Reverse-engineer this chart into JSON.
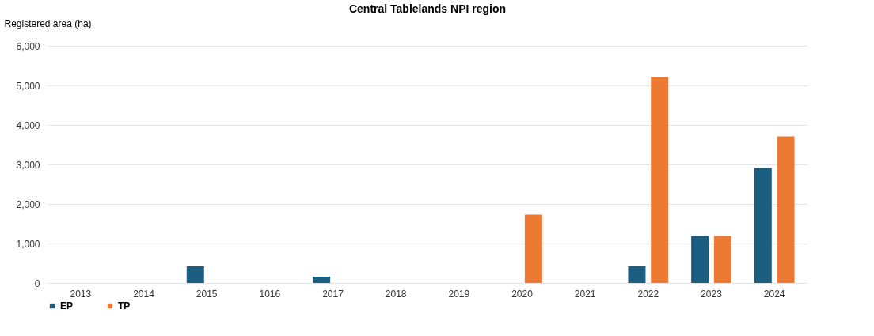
{
  "chart_data": {
    "type": "bar",
    "title": "Central Tablelands NPI region",
    "ylabel": "Registered area (ha)",
    "categories": [
      "2013",
      "2014",
      "2015",
      "1016",
      "2017",
      "2018",
      "2019",
      "2020",
      "2021",
      "2022",
      "2023",
      "2024"
    ],
    "series": [
      {
        "name": "EP",
        "color": "#1b5e82",
        "values": [
          null,
          null,
          420,
          null,
          160,
          null,
          null,
          null,
          null,
          430,
          1190,
          2910
        ]
      },
      {
        "name": "TP",
        "color": "#ed7a32",
        "values": [
          null,
          null,
          null,
          null,
          null,
          null,
          null,
          1730,
          null,
          5210,
          1190,
          3710
        ]
      }
    ],
    "ylim": [
      0,
      6000
    ],
    "yticks": [
      0,
      {
        "value": 1000,
        "label": "1,000"
      },
      {
        "value": 2000,
        "label": "2,000"
      },
      {
        "value": 3000,
        "label": "3,000"
      },
      {
        "value": 4000,
        "label": "4,000"
      },
      {
        "value": 5000,
        "label": "5,000"
      },
      {
        "value": 6000,
        "label": "6,000"
      }
    ],
    "grid": "y",
    "legend": "bottom"
  }
}
